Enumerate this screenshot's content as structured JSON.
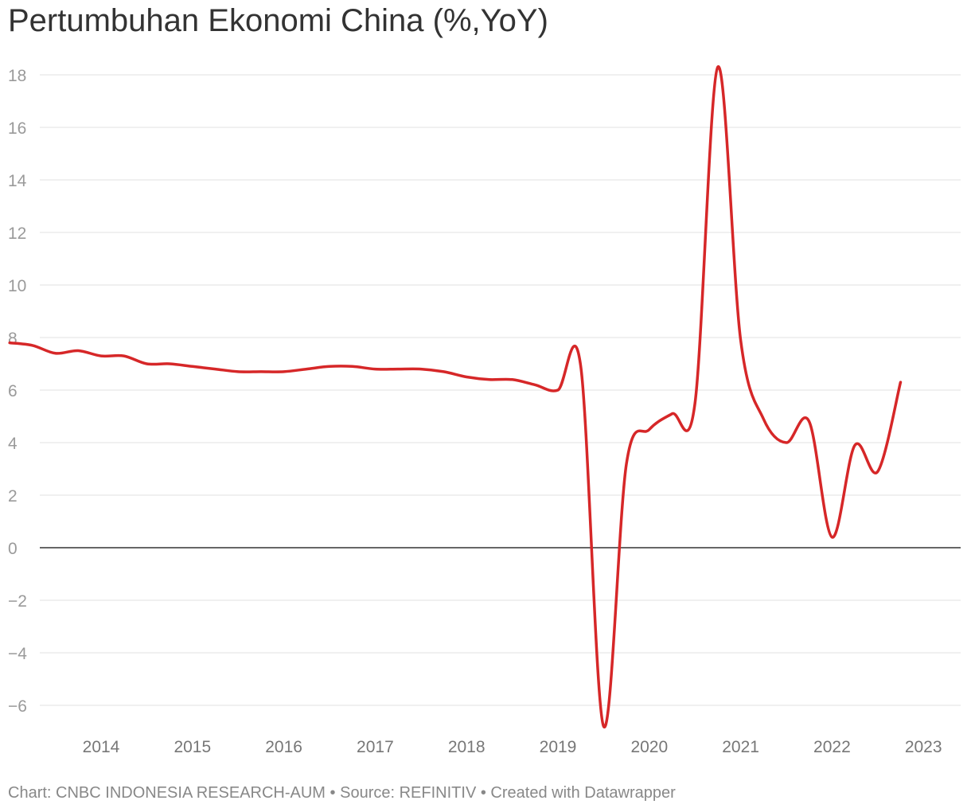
{
  "chart_data": {
    "type": "line",
    "title": "Pertumbuhan Ekonomi China (%,YoY)",
    "xlabel": "",
    "ylabel": "",
    "ylim": [
      -6.8,
      18.5
    ],
    "yticks": [
      18,
      16,
      14,
      12,
      10,
      8,
      6,
      4,
      2,
      0,
      -2,
      -4,
      -6
    ],
    "ytick_labels": [
      "18",
      "16",
      "14",
      "12",
      "10",
      "8",
      "6",
      "4",
      "2",
      "0",
      "−2",
      "−4",
      "−6"
    ],
    "xticks": [
      "2014",
      "2015",
      "2016",
      "2017",
      "2018",
      "2019",
      "2020",
      "2021",
      "2022",
      "2023"
    ],
    "grid": true,
    "series": [
      {
        "color": "#d62728",
        "x": [
          "2013 Q3",
          "2013 Q4",
          "2014 Q1",
          "2014 Q2",
          "2014 Q3",
          "2014 Q4",
          "2015 Q1",
          "2015 Q2",
          "2015 Q3",
          "2015 Q4",
          "2016 Q1",
          "2016 Q2",
          "2016 Q3",
          "2016 Q4",
          "2017 Q1",
          "2017 Q2",
          "2017 Q3",
          "2017 Q4",
          "2018 Q1",
          "2018 Q2",
          "2018 Q3",
          "2018 Q4",
          "2019 Q1",
          "2019 Q2",
          "2019 Q3",
          "2019 Q4",
          "2020 Q1",
          "2020 Q2",
          "2020 Q3",
          "2020 Q4",
          "2021 Q1",
          "2021 Q2",
          "2021 Q3",
          "2021 Q4",
          "2022 Q1",
          "2022 Q2",
          "2022 Q3",
          "2022 Q4",
          "2023 Q1",
          "2023 Q2"
        ],
        "values": [
          7.8,
          7.7,
          7.4,
          7.5,
          7.3,
          7.3,
          7.0,
          7.0,
          6.9,
          6.8,
          6.7,
          6.7,
          6.7,
          6.8,
          6.9,
          6.9,
          6.8,
          6.8,
          6.8,
          6.7,
          6.5,
          6.4,
          6.4,
          6.2,
          6.0,
          6.9,
          -6.8,
          3.2,
          4.5,
          5.1,
          5.5,
          18.3,
          7.9,
          4.9,
          4.0,
          4.8,
          0.4,
          3.9,
          2.9,
          6.3
        ]
      }
    ]
  },
  "footer": {
    "chart_label": "Chart:",
    "chart_source": "CNBC INDONESIA RESEARCH-AUM",
    "separator": "•",
    "source_label": "Source:",
    "source_value": "REFINITIV",
    "created_with": "Created with Datawrapper"
  }
}
